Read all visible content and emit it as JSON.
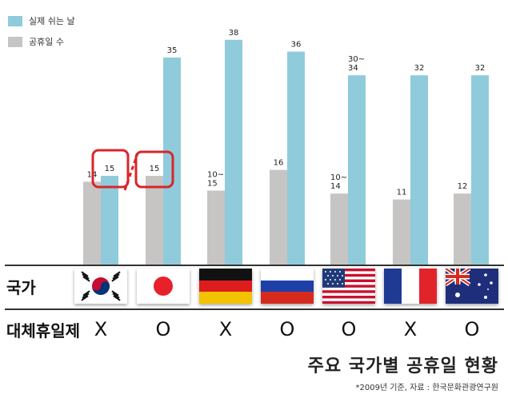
{
  "legend": {
    "actual_label": "실제 쉬는 날",
    "holiday_label": "공휴일 수"
  },
  "colors": {
    "actual": "#8fcbdb",
    "holiday": "#c7c4c4",
    "highlight": "#d9252a"
  },
  "chart_data": {
    "type": "bar",
    "categories": [
      "대한민국",
      "일본",
      "독일",
      "러시아",
      "미국",
      "프랑스",
      "호주"
    ],
    "series": [
      {
        "name": "공휴일 수",
        "values": [
          14,
          15,
          12.5,
          16,
          12,
          11,
          12
        ],
        "labels": [
          "14",
          "15",
          "10~\n15",
          "16",
          "10~\n14",
          "11",
          "12"
        ]
      },
      {
        "name": "실제 쉬는 날",
        "values": [
          15,
          35,
          38,
          36,
          32,
          32,
          32
        ],
        "labels": [
          "15",
          "35",
          "38",
          "36",
          "30~\n34",
          "32",
          "32"
        ]
      }
    ],
    "ylim": [
      0,
      40
    ],
    "grid": false,
    "legend_position": "top-left",
    "highlights": [
      "대한민국 실제 쉬는 날 15",
      "일본 공휴일 수 15"
    ]
  },
  "rows": {
    "country_label": "국가",
    "substitute_label": "대체휴일제"
  },
  "substitute_marks": [
    "X",
    "O",
    "X",
    "O",
    "O",
    "X",
    "O"
  ],
  "flags": [
    "korea-flag",
    "japan-flag",
    "germany-flag",
    "russia-flag",
    "usa-flag",
    "france-flag",
    "australia-flag"
  ],
  "title": "주요 국가별 공휴일 현황",
  "footnote": "*2009년 기준, 자료 : 한국문화관광연구원"
}
